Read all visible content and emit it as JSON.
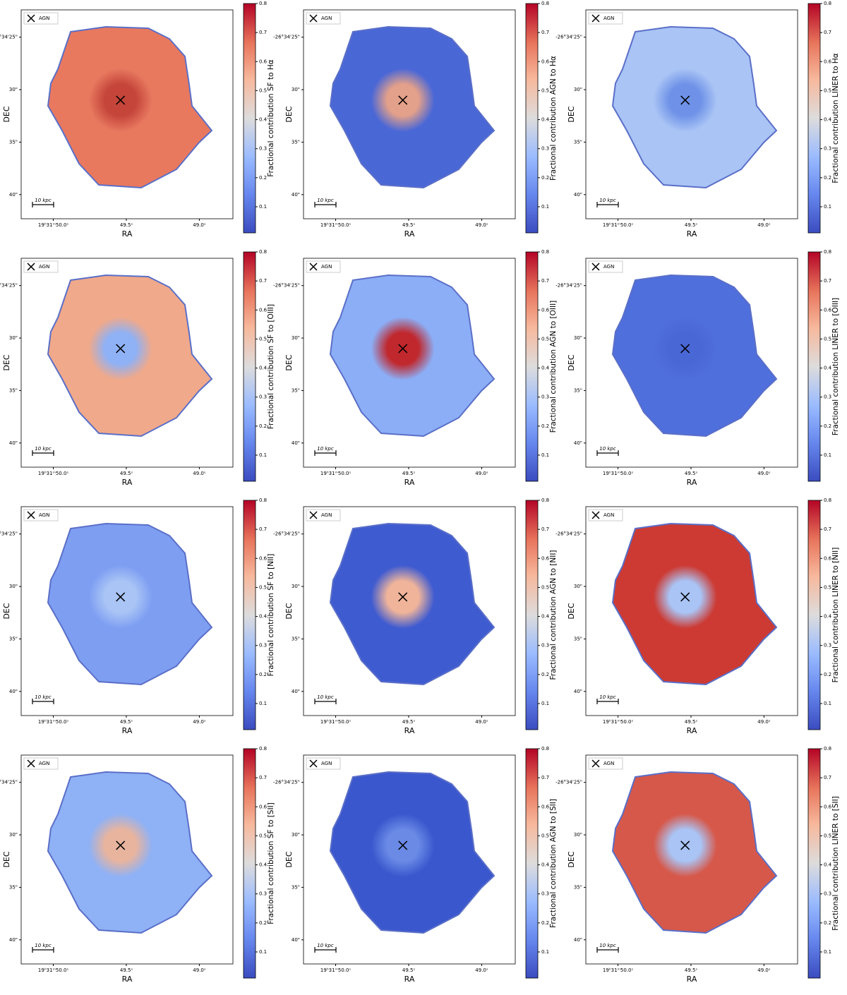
{
  "axes": {
    "xlabel": "RA",
    "ylabel": "DEC",
    "xlim": [
      50.22,
      48.77
    ],
    "ylim": [
      42.3,
      22.4
    ],
    "xticks": [
      {
        "value": 50.0,
        "label": "19ʰ31ᵐ50.0ˢ"
      },
      {
        "value": 49.5,
        "label": "49.5ˢ"
      },
      {
        "value": 49.0,
        "label": "49.0ˢ"
      }
    ],
    "yticks": [
      {
        "value": 25,
        "label": "-26°34'25\""
      },
      {
        "value": 30,
        "label": "30\""
      },
      {
        "value": 35,
        "label": "35\""
      },
      {
        "value": 40,
        "label": "40\""
      }
    ],
    "clim": [
      0.01,
      0.8
    ],
    "cticks": [
      0.1,
      0.2,
      0.3,
      0.4,
      0.5,
      0.6,
      0.7,
      0.8
    ],
    "legend": "AGN",
    "agn_position": {
      "ra": 49.54,
      "dec": 31.0
    },
    "scalebar": "10 kpc"
  },
  "chart_data": [
    {
      "type": "map",
      "colorbar_label": "Fractional contribution SF to Hα",
      "color": "#e8795f",
      "center_color": "#c5453b"
    },
    {
      "type": "map",
      "colorbar_label": "Fractional contribution AGN to Hα",
      "color": "#4a67d6",
      "center_color": "#e3a08a"
    },
    {
      "type": "map",
      "colorbar_label": "Fractional contribution LINER to Hα",
      "color": "#a9c4f5",
      "center_color": "#6f92e8"
    },
    {
      "type": "map",
      "colorbar_label": "Fractional contribution SF to [OIII]",
      "color": "#f0a98a",
      "center_color": "#8fb1f5"
    },
    {
      "type": "map",
      "colorbar_label": "Fractional contribution AGN to [OIII]",
      "color": "#8caef6",
      "center_color": "#c0282d"
    },
    {
      "type": "map",
      "colorbar_label": "Fractional contribution LINER to [OIII]",
      "color": "#4f6fdc",
      "center_color": "#4a67d6"
    },
    {
      "type": "map",
      "colorbar_label": "Fractional contribution SF to [NII]",
      "color": "#7e9ef2",
      "center_color": "#a9c4f5"
    },
    {
      "type": "map",
      "colorbar_label": "Fractional contribution AGN to [NII]",
      "color": "#3f5bd0",
      "center_color": "#f0b49a"
    },
    {
      "type": "map",
      "colorbar_label": "Fractional contribution LINER to [NII]",
      "color": "#cc3a33",
      "center_color": "#a9c4f5"
    },
    {
      "type": "map",
      "colorbar_label": "Fractional contribution SF to [SII]",
      "color": "#8fb1f5",
      "center_color": "#e8b49e"
    },
    {
      "type": "map",
      "colorbar_label": "Fractional contribution AGN to [SII]",
      "color": "#3b57cd",
      "center_color": "#6a8ae6"
    },
    {
      "type": "map",
      "colorbar_label": "Fractional contribution LINER to [SII]",
      "color": "#d6584a",
      "center_color": "#a9c4f5"
    }
  ]
}
